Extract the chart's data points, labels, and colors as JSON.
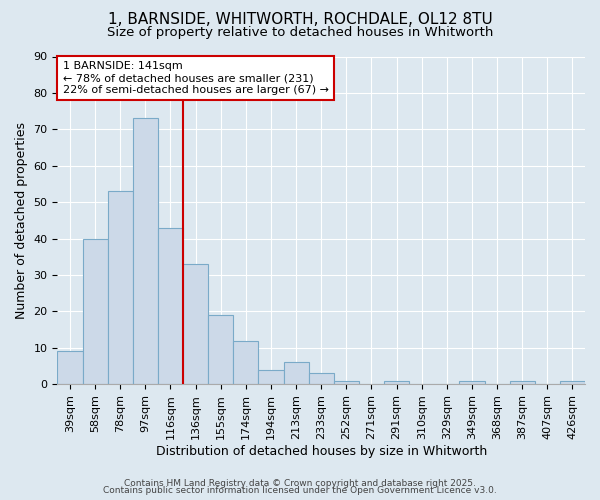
{
  "title_line1": "1, BARNSIDE, WHITWORTH, ROCHDALE, OL12 8TU",
  "title_line2": "Size of property relative to detached houses in Whitworth",
  "xlabel": "Distribution of detached houses by size in Whitworth",
  "ylabel": "Number of detached properties",
  "categories": [
    "39sqm",
    "58sqm",
    "78sqm",
    "97sqm",
    "116sqm",
    "136sqm",
    "155sqm",
    "174sqm",
    "194sqm",
    "213sqm",
    "233sqm",
    "252sqm",
    "271sqm",
    "291sqm",
    "310sqm",
    "329sqm",
    "349sqm",
    "368sqm",
    "387sqm",
    "407sqm",
    "426sqm"
  ],
  "values": [
    9,
    40,
    53,
    73,
    43,
    33,
    19,
    12,
    4,
    6,
    3,
    1,
    0,
    1,
    0,
    0,
    1,
    0,
    1,
    0,
    1
  ],
  "bar_color": "#ccd9e8",
  "bar_edge_color": "#7aaac8",
  "vline_color": "#cc0000",
  "vline_index": 5,
  "annotation_title": "1 BARNSIDE: 141sqm",
  "annotation_line1": "← 78% of detached houses are smaller (231)",
  "annotation_line2": "22% of semi-detached houses are larger (67) →",
  "annotation_box_facecolor": "#ffffff",
  "annotation_box_edgecolor": "#cc0000",
  "ylim": [
    0,
    90
  ],
  "yticks": [
    0,
    10,
    20,
    30,
    40,
    50,
    60,
    70,
    80,
    90
  ],
  "bg_color": "#dde8f0",
  "fig_bg_color": "#dde8f0",
  "footer1": "Contains HM Land Registry data © Crown copyright and database right 2025.",
  "footer2": "Contains public sector information licensed under the Open Government Licence v3.0.",
  "title_fontsize": 11,
  "subtitle_fontsize": 9.5,
  "axis_label_fontsize": 9,
  "tick_fontsize": 8,
  "annotation_fontsize": 8,
  "footer_fontsize": 6.5
}
